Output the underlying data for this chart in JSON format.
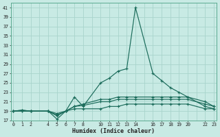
{
  "xlabel": "Humidex (Indice chaleur)",
  "bg_color": "#c8eae4",
  "grid_color": "#a8d4cc",
  "line_color": "#1a6b5a",
  "ylim": [
    17,
    42
  ],
  "xlim": [
    -0.3,
    23.3
  ],
  "yticks": [
    17,
    19,
    21,
    23,
    25,
    27,
    29,
    31,
    33,
    35,
    37,
    39,
    41
  ],
  "xticks": [
    0,
    1,
    2,
    4,
    5,
    6,
    7,
    8,
    10,
    11,
    12,
    13,
    14,
    16,
    17,
    18,
    19,
    20,
    22,
    23
  ],
  "series": [
    {
      "x": [
        0,
        1,
        2,
        4,
        5,
        6,
        7,
        8,
        10,
        11,
        12,
        13,
        14,
        16,
        17,
        18,
        19,
        20,
        22,
        23
      ],
      "y": [
        19,
        19,
        19,
        19,
        17.3,
        19,
        22,
        20,
        25,
        26,
        27.5,
        28,
        41,
        27,
        25.5,
        24,
        23,
        22,
        20,
        19.5
      ]
    },
    {
      "x": [
        0,
        1,
        2,
        4,
        5,
        6,
        7,
        8,
        10,
        11,
        12,
        13,
        14,
        16,
        17,
        18,
        19,
        20,
        22,
        23
      ],
      "y": [
        19,
        19.2,
        19,
        19,
        18,
        19,
        20,
        20.5,
        21.5,
        21.5,
        22,
        22,
        22,
        22,
        22,
        22,
        22,
        22,
        21,
        20
      ]
    },
    {
      "x": [
        0,
        1,
        2,
        4,
        5,
        6,
        7,
        8,
        10,
        11,
        12,
        13,
        14,
        16,
        17,
        18,
        19,
        20,
        22,
        23
      ],
      "y": [
        19,
        19.2,
        19,
        19,
        18.2,
        19,
        20,
        20.2,
        21,
        21,
        21.5,
        21.5,
        21.5,
        21.5,
        21.5,
        21.5,
        21.5,
        21.5,
        20.5,
        20
      ]
    },
    {
      "x": [
        0,
        1,
        2,
        4,
        5,
        6,
        7,
        8,
        10,
        11,
        12,
        13,
        14,
        16,
        17,
        18,
        19,
        20,
        22,
        23
      ],
      "y": [
        19,
        19,
        19,
        19,
        18.5,
        19,
        19.5,
        19.5,
        19.5,
        20,
        20,
        20.5,
        20.5,
        20.5,
        20.5,
        20.5,
        20.5,
        20.5,
        19.5,
        19.5
      ]
    }
  ]
}
